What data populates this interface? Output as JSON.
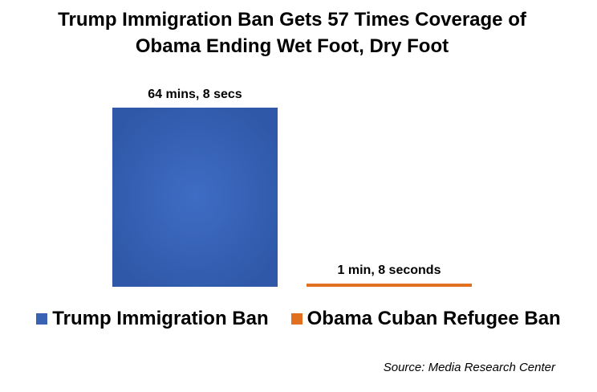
{
  "chart_data": {
    "type": "bar",
    "title_line1": "Trump Immigration Ban Gets 57 Times Coverage of",
    "title_line2": "Obama Ending Wet Foot, Dry Foot",
    "xlabel": "",
    "ylabel": "",
    "ylim": [
      0,
      3848
    ],
    "grid": false,
    "legend_position": "bottom",
    "series": [
      {
        "name": "Trump Immigration Ban",
        "value_seconds": 3848,
        "data_label": "64 mins, 8 secs",
        "color": "#3a62b2"
      },
      {
        "name": "Obama Cuban Refugee Ban",
        "value_seconds": 68,
        "data_label": "1 min, 8 seconds",
        "color": "#e07020"
      }
    ]
  },
  "source": "Source: Media Research Center"
}
